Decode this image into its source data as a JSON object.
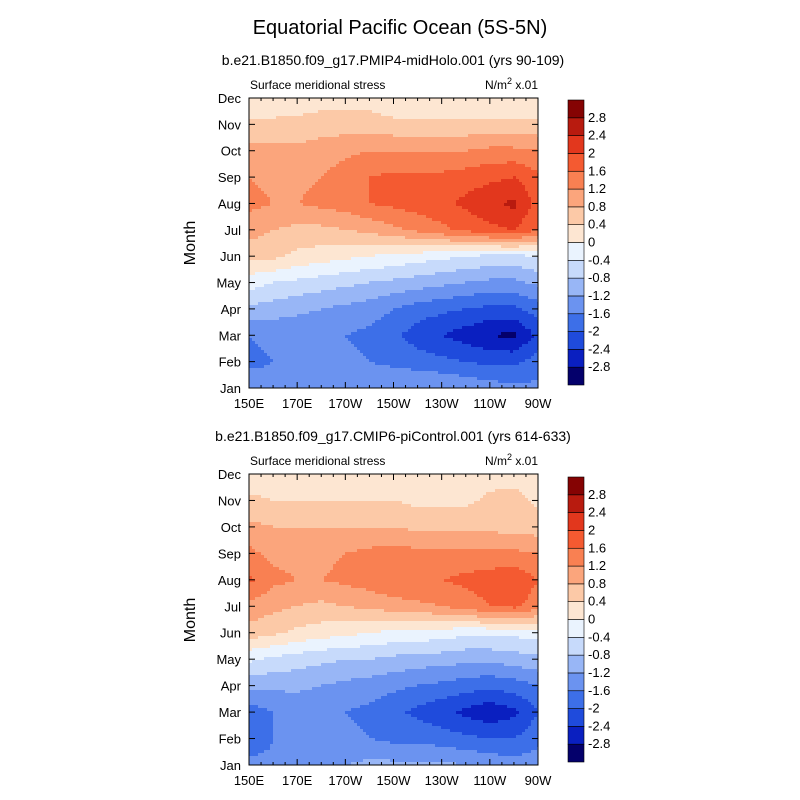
{
  "title": "Equatorial Pacific Ocean (5S-5N)",
  "colorbar": {
    "colors": [
      "#04006b",
      "#0a1fc0",
      "#1f4bdc",
      "#3d6fe8",
      "#6b93f0",
      "#98b6f6",
      "#c7dafb",
      "#eaf3fe",
      "#fde6d2",
      "#fcc9a7",
      "#fba57c",
      "#f98052",
      "#f45a31",
      "#e2371d",
      "#b81b0f",
      "#850303"
    ],
    "labels": [
      "-2.8",
      "-2.4",
      "-2",
      "-1.6",
      "-1.2",
      "-0.8",
      "-0.4",
      "0",
      "0.4",
      "0.8",
      "1.2",
      "1.6",
      "2",
      "2.4",
      "2.8"
    ]
  },
  "chart_data": [
    {
      "type": "heatmap",
      "subtitle": "b.e21.B1850.f09_g17.PMIP4-midHolo.001 (yrs 90-109)",
      "left_label": "Surface meridional stress",
      "right_label_base": "N/m",
      "right_label_sup": "2",
      "right_label_scale": " x.01",
      "ylabel": "Month",
      "x_ticks": [
        "150E",
        "170E",
        "170W",
        "150W",
        "130W",
        "110W",
        "90W"
      ],
      "y_ticks": [
        "Jan",
        "Feb",
        "Mar",
        "Apr",
        "May",
        "Jun",
        "Jul",
        "Aug",
        "Sep",
        "Oct",
        "Nov",
        "Dec"
      ],
      "xlim": [
        150,
        270
      ],
      "x": [
        150,
        160,
        170,
        180,
        190,
        200,
        210,
        220,
        230,
        240,
        250,
        260,
        270
      ],
      "z": [
        [
          -1.3,
          -1.5,
          -1.3,
          -1.3,
          -1.3,
          -1.3,
          -1.2,
          -1.2,
          -1.2,
          -1.3,
          -1.4,
          -1.5,
          -1.5
        ],
        [
          -1.7,
          -1.6,
          -1.5,
          -1.5,
          -1.5,
          -1.6,
          -1.7,
          -1.8,
          -1.9,
          -2.0,
          -2.1,
          -2.1,
          -1.8
        ],
        [
          -1.6,
          -1.5,
          -1.5,
          -1.5,
          -1.6,
          -1.7,
          -1.9,
          -2.2,
          -2.4,
          -2.6,
          -2.8,
          -2.9,
          -2.3
        ],
        [
          -0.9,
          -1.0,
          -1.1,
          -1.2,
          -1.3,
          -1.4,
          -1.6,
          -1.8,
          -1.9,
          -2.0,
          -2.1,
          -2.1,
          -1.8
        ],
        [
          -0.2,
          -0.4,
          -0.5,
          -0.6,
          -0.7,
          -0.8,
          -0.9,
          -1.0,
          -1.1,
          -1.2,
          -1.3,
          -1.3,
          -1.1
        ],
        [
          0.5,
          0.5,
          0.3,
          0.2,
          0.1,
          0.0,
          -0.1,
          -0.2,
          -0.3,
          -0.4,
          -0.5,
          -0.5,
          -0.4
        ],
        [
          1.0,
          0.8,
          0.7,
          0.7,
          0.8,
          0.9,
          1.1,
          1.3,
          1.5,
          1.7,
          1.9,
          2.0,
          1.6
        ],
        [
          1.3,
          1.2,
          1.2,
          1.3,
          1.4,
          1.6,
          1.7,
          1.8,
          1.9,
          2.1,
          2.3,
          2.5,
          1.8
        ],
        [
          1.2,
          1.1,
          1.1,
          1.2,
          1.4,
          1.6,
          1.7,
          1.7,
          1.7,
          1.8,
          1.9,
          2.0,
          1.7
        ],
        [
          0.9,
          0.9,
          0.9,
          1.0,
          1.1,
          1.2,
          1.2,
          1.2,
          1.2,
          1.2,
          1.3,
          1.3,
          1.2
        ],
        [
          0.5,
          0.5,
          0.5,
          0.6,
          0.6,
          0.6,
          0.5,
          0.5,
          0.5,
          0.5,
          0.5,
          0.5,
          0.5
        ],
        [
          0.0,
          0.1,
          0.2,
          0.2,
          0.2,
          0.2,
          0.1,
          0.1,
          0.1,
          0.1,
          0.0,
          0.0,
          0.0
        ]
      ]
    },
    {
      "type": "heatmap",
      "subtitle": "b.e21.B1850.f09_g17.CMIP6-piControl.001 (yrs 614-633)",
      "left_label": "Surface meridional stress",
      "right_label_base": "N/m",
      "right_label_sup": "2",
      "right_label_scale": " x.01",
      "ylabel": "Month",
      "x_ticks": [
        "150E",
        "170E",
        "170W",
        "150W",
        "130W",
        "110W",
        "90W"
      ],
      "y_ticks": [
        "Jan",
        "Feb",
        "Mar",
        "Apr",
        "May",
        "Jun",
        "Jul",
        "Aug",
        "Sep",
        "Oct",
        "Nov",
        "Dec"
      ],
      "xlim": [
        150,
        270
      ],
      "x": [
        150,
        160,
        170,
        180,
        190,
        200,
        210,
        220,
        230,
        240,
        250,
        260,
        270
      ],
      "z": [
        [
          -1.4,
          -1.5,
          -1.3,
          -1.2,
          -1.2,
          -1.1,
          -1.1,
          -1.1,
          -1.1,
          -1.2,
          -1.3,
          -1.4,
          -1.4
        ],
        [
          -2.0,
          -1.6,
          -1.5,
          -1.5,
          -1.5,
          -1.6,
          -1.7,
          -1.7,
          -1.8,
          -1.9,
          -2.0,
          -2.0,
          -1.7
        ],
        [
          -1.8,
          -1.6,
          -1.5,
          -1.5,
          -1.6,
          -1.7,
          -1.9,
          -2.1,
          -2.3,
          -2.5,
          -2.7,
          -2.5,
          -2.0
        ],
        [
          -1.1,
          -1.1,
          -1.1,
          -1.2,
          -1.3,
          -1.4,
          -1.5,
          -1.6,
          -1.7,
          -1.8,
          -1.9,
          -1.8,
          -1.6
        ],
        [
          -0.3,
          -0.5,
          -0.6,
          -0.7,
          -0.8,
          -0.8,
          -0.9,
          -1.0,
          -1.0,
          -1.1,
          -1.1,
          -1.0,
          -0.9
        ],
        [
          0.6,
          0.5,
          0.3,
          0.2,
          0.1,
          0.0,
          -0.1,
          -0.1,
          -0.2,
          -0.3,
          -0.3,
          -0.3,
          -0.2
        ],
        [
          1.1,
          0.9,
          0.8,
          0.7,
          0.8,
          0.9,
          1.0,
          1.1,
          1.2,
          1.4,
          1.6,
          1.7,
          1.4
        ],
        [
          1.7,
          1.3,
          1.2,
          1.2,
          1.3,
          1.4,
          1.6,
          1.6,
          1.6,
          1.7,
          1.8,
          1.9,
          1.6
        ],
        [
          1.3,
          1.1,
          1.1,
          1.1,
          1.2,
          1.3,
          1.4,
          1.3,
          1.3,
          1.3,
          1.3,
          1.3,
          1.2
        ],
        [
          0.9,
          0.8,
          0.8,
          0.8,
          0.8,
          0.8,
          0.8,
          0.7,
          0.7,
          0.7,
          0.7,
          0.6,
          0.6
        ],
        [
          0.5,
          0.4,
          0.4,
          0.4,
          0.4,
          0.4,
          0.4,
          0.3,
          0.3,
          0.3,
          0.5,
          0.6,
          0.3
        ],
        [
          0.0,
          0.2,
          0.2,
          0.2,
          0.2,
          0.2,
          0.1,
          0.1,
          0.1,
          0.1,
          0.2,
          0.2,
          0.1
        ]
      ]
    }
  ]
}
